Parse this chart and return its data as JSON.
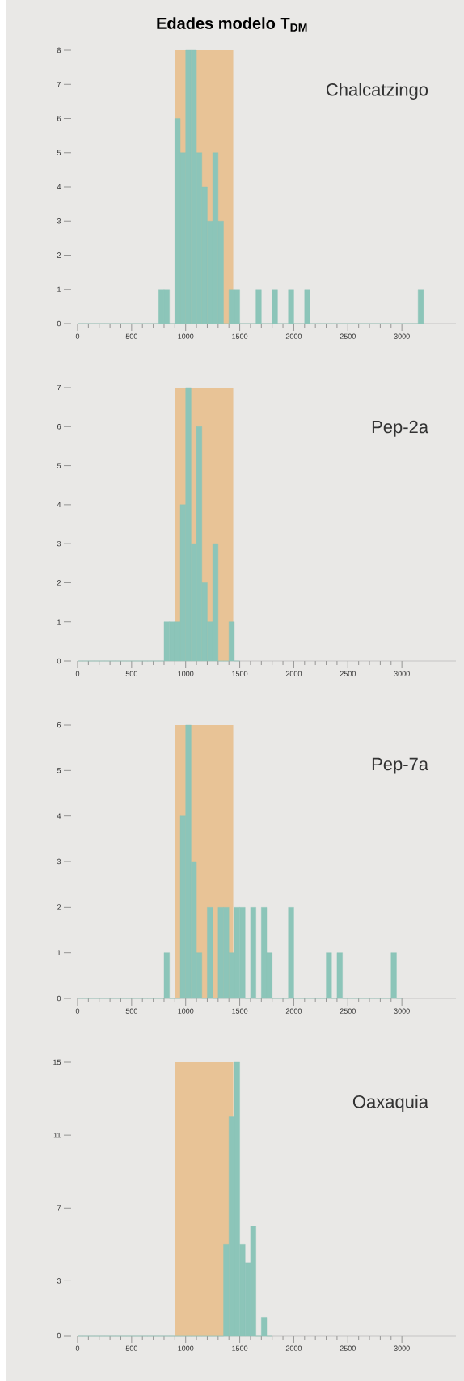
{
  "chart_data": [
    {
      "type": "histogram",
      "title": "Edades modelo T$_{DM}$",
      "subtitle": "Chalcatzingo",
      "color": "#8cc5b9",
      "bins": [
        0,
        50,
        100,
        150,
        200,
        250,
        300,
        350,
        400,
        450,
        500,
        550,
        600,
        650,
        700,
        750,
        800,
        850,
        900,
        950,
        1000,
        1050,
        1100,
        1150,
        1200,
        1250,
        1300,
        1350,
        1400,
        1450,
        1500,
        1550,
        1600,
        1650,
        1700,
        1750,
        1800,
        1850,
        1900,
        1950,
        2000,
        2050,
        2100,
        2150,
        2200,
        2250,
        2300,
        2350,
        2400,
        2450,
        2500,
        2550,
        2600,
        2650,
        2700,
        2750,
        2800,
        2850,
        2900,
        2950,
        3000,
        3050,
        3100,
        3150,
        3200
      ],
      "values": [
        0,
        0,
        0,
        0,
        0,
        0,
        0,
        0,
        0,
        0,
        0,
        0,
        0,
        0,
        0,
        1,
        1,
        0,
        6,
        5,
        8,
        8,
        5,
        4,
        3,
        5,
        3,
        0,
        1,
        1,
        0,
        0,
        0,
        1,
        0,
        0,
        1,
        0,
        0,
        1,
        0,
        0,
        1,
        0,
        0,
        0,
        0,
        0,
        0,
        0,
        0,
        0,
        0,
        0,
        0,
        0,
        0,
        0,
        0,
        0,
        0,
        0,
        0,
        1
      ],
      "xlim": [
        0,
        3500
      ],
      "ylim": [
        0,
        8
      ],
      "xticks": [
        0,
        500,
        1000,
        1500,
        2000,
        2500,
        3000
      ],
      "yticks": [
        0,
        1,
        2,
        3,
        4,
        5,
        6,
        7,
        8
      ],
      "bands": [
        {
          "axis": "x",
          "from": 900,
          "to": 1440,
          "color": "#e8c396"
        }
      ]
    },
    {
      "type": "histogram",
      "subtitle": "Pep-2a",
      "color": "#8cc5b9",
      "bins": [
        0,
        50,
        100,
        150,
        200,
        250,
        300,
        350,
        400,
        450,
        500,
        550,
        600,
        650,
        700,
        750,
        800,
        850,
        900,
        950,
        1000,
        1050,
        1100,
        1150,
        1200,
        1250,
        1300,
        1350,
        1400,
        1450,
        1500
      ],
      "values": [
        0,
        0,
        0,
        0,
        0,
        0,
        0,
        0,
        0,
        0,
        0,
        0,
        0,
        0,
        0,
        0,
        1,
        1,
        1,
        4,
        7,
        3,
        6,
        2,
        1,
        3,
        0,
        0,
        1,
        0
      ],
      "xlim": [
        0,
        3500
      ],
      "ylim": [
        0,
        7
      ],
      "xticks": [
        0,
        500,
        1000,
        1500,
        2000,
        2500,
        3000
      ],
      "yticks": [
        0,
        1,
        2,
        3,
        4,
        5,
        6,
        7
      ],
      "bands": [
        {
          "axis": "x",
          "from": 900,
          "to": 1440,
          "color": "#e8c396"
        }
      ]
    },
    {
      "type": "histogram",
      "subtitle": "Pep-7a",
      "color": "#8cc5b9",
      "bins": [
        0,
        50,
        100,
        150,
        200,
        250,
        300,
        350,
        400,
        450,
        500,
        550,
        600,
        650,
        700,
        750,
        800,
        850,
        900,
        950,
        1000,
        1050,
        1100,
        1150,
        1200,
        1250,
        1300,
        1350,
        1400,
        1450,
        1500,
        1550,
        1600,
        1650,
        1700,
        1750,
        1800,
        1850,
        1900,
        1950,
        2000,
        2050,
        2100,
        2150,
        2200,
        2250,
        2300,
        2350,
        2400,
        2450,
        2500,
        2550,
        2600,
        2650,
        2700,
        2750,
        2800,
        2850,
        2900,
        2950,
        3000
      ],
      "values": [
        0,
        0,
        0,
        0,
        0,
        0,
        0,
        0,
        0,
        0,
        0,
        0,
        0,
        0,
        0,
        0,
        1,
        0,
        0,
        4,
        6,
        3,
        1,
        0,
        2,
        0,
        2,
        2,
        1,
        2,
        2,
        0,
        2,
        0,
        2,
        1,
        0,
        0,
        0,
        2,
        0,
        0,
        0,
        0,
        0,
        0,
        1,
        0,
        1,
        0,
        0,
        0,
        0,
        0,
        0,
        0,
        0,
        0,
        1,
        0
      ],
      "xlim": [
        0,
        3500
      ],
      "ylim": [
        0,
        6
      ],
      "xticks": [
        0,
        500,
        1000,
        1500,
        2000,
        2500,
        3000
      ],
      "yticks": [
        0,
        1,
        2,
        3,
        4,
        5,
        6
      ],
      "bands": [
        {
          "axis": "x",
          "from": 900,
          "to": 1440,
          "color": "#e8c396"
        }
      ]
    },
    {
      "type": "histogram",
      "subtitle": "Oaxaquia",
      "color": "#8cc5b9",
      "bins": [
        0,
        50,
        100,
        150,
        200,
        250,
        300,
        350,
        400,
        450,
        500,
        550,
        600,
        650,
        700,
        750,
        800,
        850,
        900,
        950,
        1000,
        1050,
        1100,
        1150,
        1200,
        1250,
        1300,
        1350,
        1400,
        1450,
        1500,
        1550,
        1600,
        1650,
        1700,
        1750,
        1800
      ],
      "values": [
        0,
        0,
        0,
        0,
        0,
        0,
        0,
        0,
        0,
        0,
        0,
        0,
        0,
        0,
        0,
        0,
        0,
        0,
        0,
        0,
        0,
        0,
        0,
        0,
        0,
        0,
        0,
        5,
        12,
        15,
        5,
        4,
        6,
        0,
        1,
        0
      ],
      "xlim": [
        0,
        3500
      ],
      "ylim": [
        0,
        15
      ],
      "xticks": [
        0,
        500,
        1000,
        1500,
        2000,
        2500,
        3000
      ],
      "yticks": [
        0,
        3,
        7,
        11,
        15
      ],
      "bands": [
        {
          "axis": "x",
          "from": 900,
          "to": 1440,
          "color": "#e8c396"
        }
      ]
    }
  ]
}
